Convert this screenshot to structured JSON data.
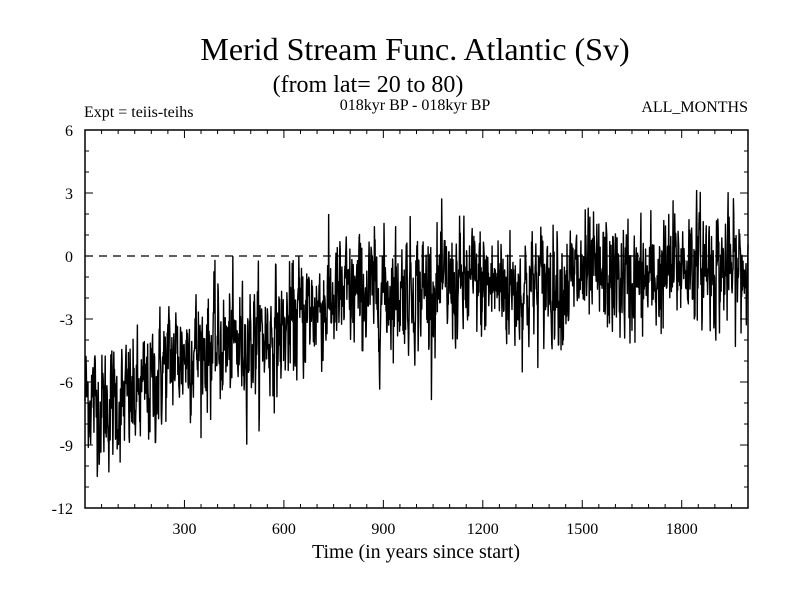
{
  "chart_data": {
    "type": "line",
    "title": "Merid Stream Func. Atlantic (Sv)",
    "subtitle": "(from lat= 20 to 80)",
    "period_label": "018kyr BP - 018kyr BP",
    "experiment_label": "Expt = teiis-teihs",
    "months_label": "ALL_MONTHS",
    "xlabel": "Time (in years since start)",
    "ylabel": "",
    "xlim": [
      0,
      2000
    ],
    "ylim": [
      -12,
      6
    ],
    "xticks": [
      300,
      600,
      900,
      1200,
      1500,
      1800
    ],
    "yticks": [
      -12,
      -9,
      -6,
      -3,
      0,
      3,
      6
    ],
    "reference_line": 0,
    "colors": {
      "series": "#000000",
      "axis": "#000000",
      "reference": "#000000"
    },
    "series": [
      {
        "name": "teiis-teihs",
        "x": [
          0,
          50,
          100,
          150,
          200,
          250,
          300,
          350,
          400,
          450,
          500,
          550,
          600,
          650,
          700,
          750,
          800,
          850,
          900,
          950,
          1000,
          1050,
          1100,
          1150,
          1200,
          1250,
          1300,
          1350,
          1400,
          1450,
          1500,
          1550,
          1600,
          1650,
          1700,
          1750,
          1800,
          1850,
          1900,
          1950,
          2000
        ],
        "values": [
          -6.5,
          -7.2,
          -7.0,
          -6.8,
          -6.2,
          -5.0,
          -4.6,
          -4.4,
          -4.3,
          -4.3,
          -4.0,
          -3.8,
          -3.6,
          -2.8,
          -2.4,
          -2.1,
          -1.9,
          -1.8,
          -1.7,
          -1.6,
          -1.5,
          -1.6,
          -1.5,
          -1.4,
          -1.4,
          -1.3,
          -1.6,
          -1.5,
          -1.2,
          -1.3,
          -1.0,
          -1.0,
          -1.1,
          -1.3,
          -1.2,
          -0.9,
          -0.3,
          -0.3,
          -0.5,
          -0.7,
          -0.8
        ],
        "noise_amplitude": 1.3,
        "sample_step_years": 1
      }
    ]
  }
}
